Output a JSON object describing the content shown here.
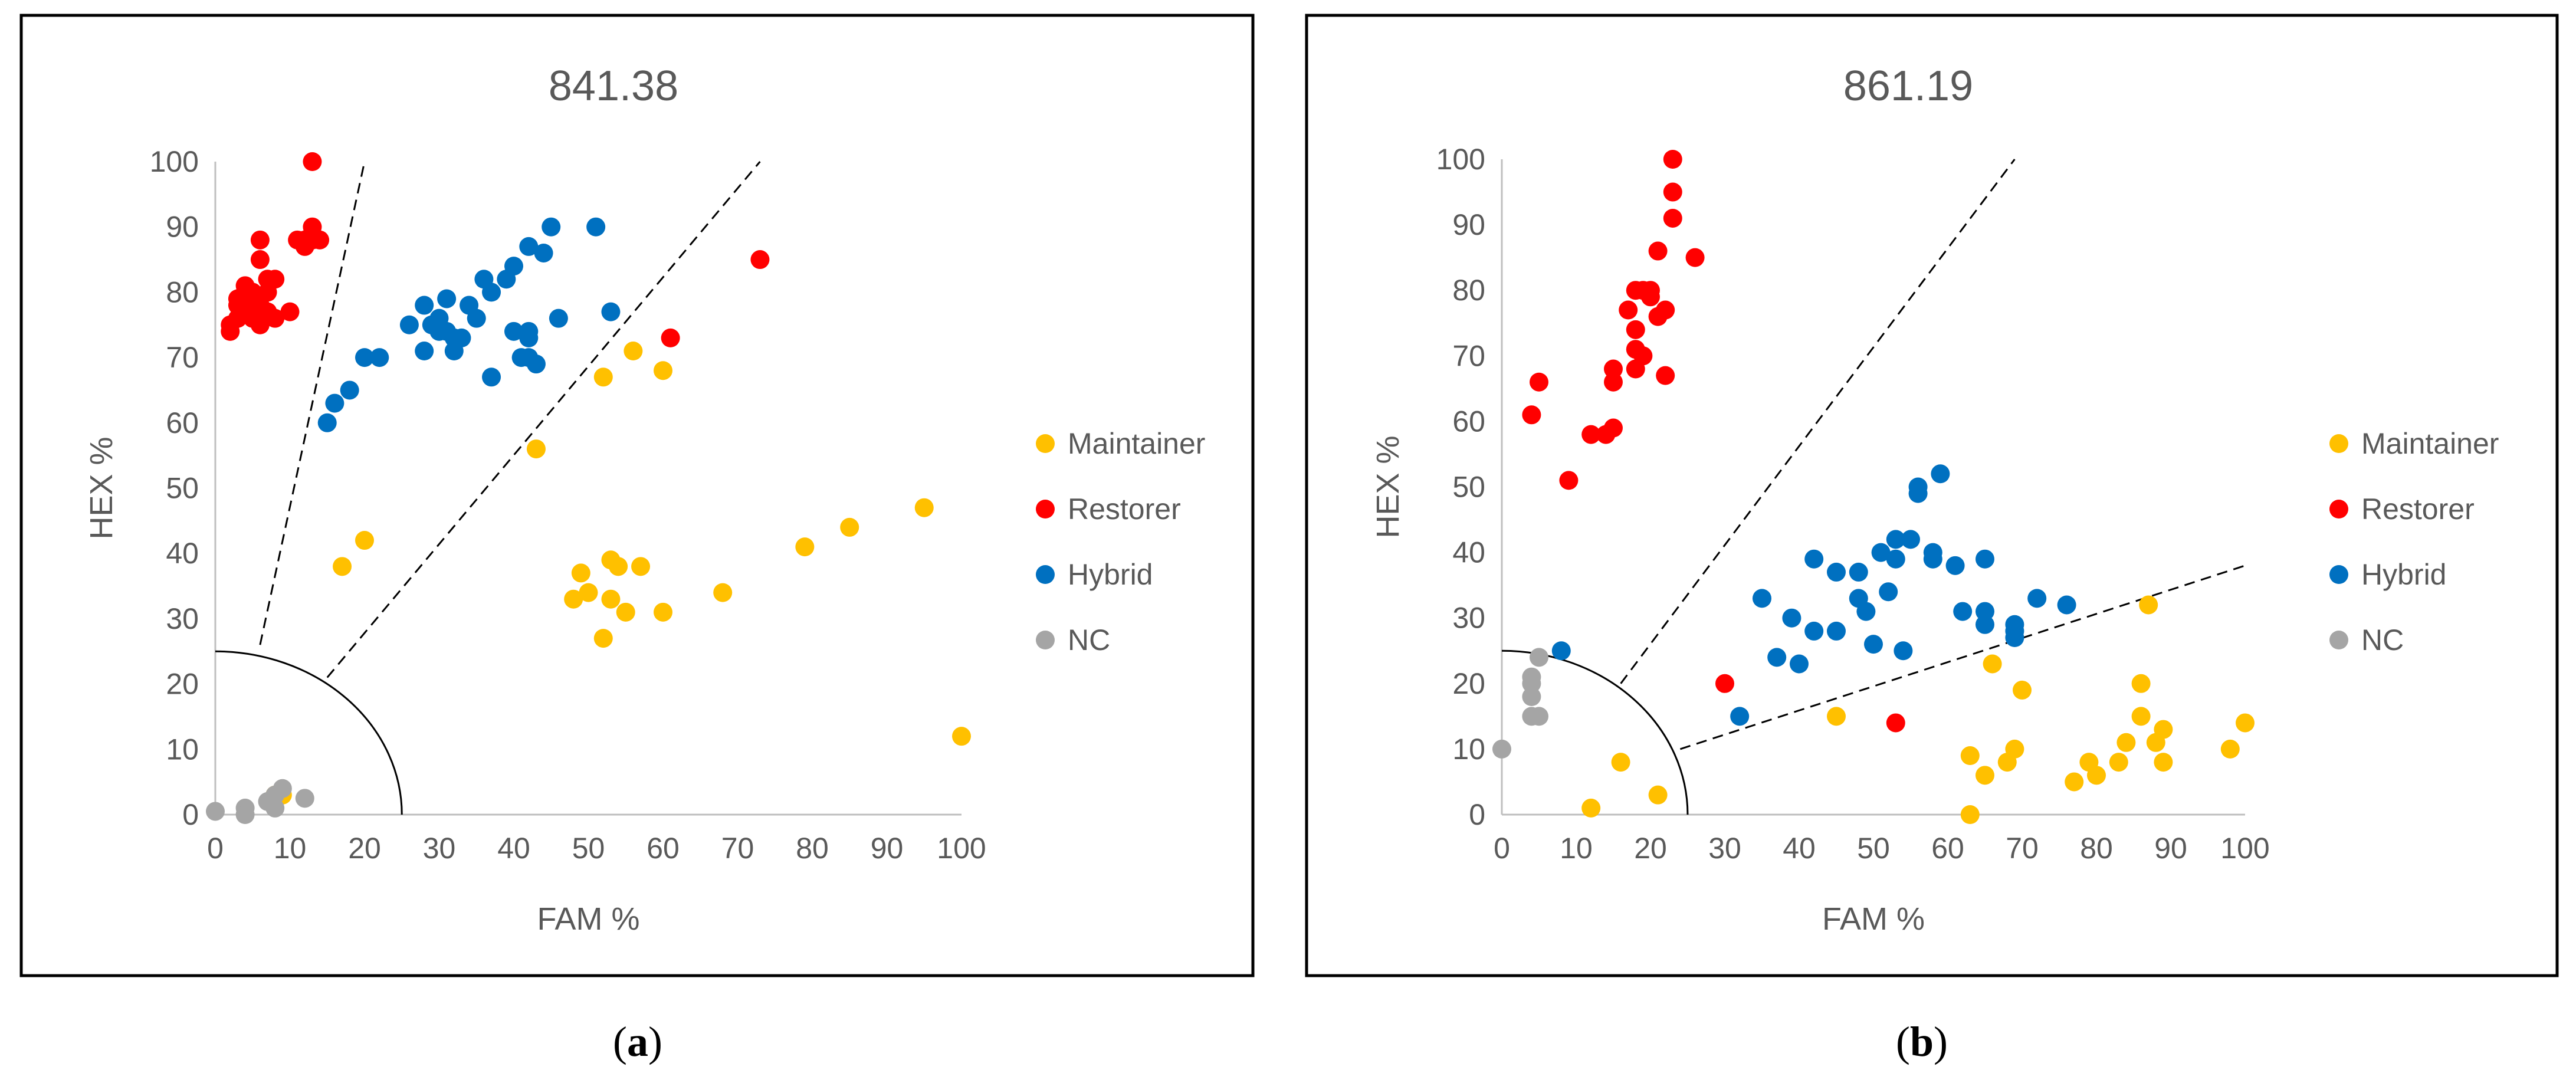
{
  "colors": {
    "maintainer": "#ffc000",
    "restorer": "#ff0000",
    "hybrid": "#0070c0",
    "nc": "#a5a5a5",
    "axis": "#bfbfbf",
    "text": "#595959",
    "frame": "#000000"
  },
  "chart_data": [
    {
      "type": "scatter",
      "panel_label": "a",
      "title": "841.38",
      "xlabel": "FAM %",
      "ylabel": "HEX %",
      "xlim": [
        0,
        100
      ],
      "ylim": [
        0,
        100
      ],
      "xticks": [
        0,
        10,
        20,
        30,
        40,
        50,
        60,
        70,
        80,
        90,
        100
      ],
      "yticks": [
        0,
        10,
        20,
        30,
        40,
        50,
        60,
        70,
        80,
        90,
        100
      ],
      "grid": false,
      "legend": "right",
      "reference_lines": [
        {
          "style": "dashed",
          "points": [
            [
              6,
              26
            ],
            [
              20,
              100
            ]
          ]
        },
        {
          "style": "dashed",
          "points": [
            [
              15,
              21
            ],
            [
              73,
              100
            ]
          ]
        }
      ],
      "reference_arc": {
        "radius": 25
      },
      "series": [
        {
          "name": "Maintainer",
          "color_key": "maintainer",
          "points": [
            [
              17,
              38
            ],
            [
              20,
              42
            ],
            [
              43,
              56
            ],
            [
              48,
              33
            ],
            [
              49,
              37
            ],
            [
              50,
              34
            ],
            [
              52,
              27
            ],
            [
              52,
              67
            ],
            [
              53,
              39
            ],
            [
              53,
              33
            ],
            [
              54,
              38
            ],
            [
              55,
              31
            ],
            [
              56,
              71
            ],
            [
              57,
              38
            ],
            [
              60,
              68
            ],
            [
              60,
              31
            ],
            [
              68,
              34
            ],
            [
              79,
              41
            ],
            [
              85,
              44
            ],
            [
              95,
              47
            ],
            [
              100,
              12
            ],
            [
              9,
              3
            ],
            [
              8,
              3
            ]
          ]
        },
        {
          "name": "Restorer",
          "color_key": "restorer",
          "points": [
            [
              2,
              74
            ],
            [
              2,
              75
            ],
            [
              3,
              78
            ],
            [
              3,
              79
            ],
            [
              3,
              76
            ],
            [
              4,
              80
            ],
            [
              4,
              81
            ],
            [
              4,
              77
            ],
            [
              5,
              78
            ],
            [
              5,
              76
            ],
            [
              5,
              79
            ],
            [
              5,
              80
            ],
            [
              6,
              85
            ],
            [
              6,
              78
            ],
            [
              6,
              75
            ],
            [
              6,
              88
            ],
            [
              7,
              82
            ],
            [
              7,
              80
            ],
            [
              7,
              77
            ],
            [
              8,
              76
            ],
            [
              8,
              82
            ],
            [
              10,
              77
            ],
            [
              11,
              88
            ],
            [
              12,
              87
            ],
            [
              12,
              88
            ],
            [
              13,
              90
            ],
            [
              13,
              89
            ],
            [
              13,
              88
            ],
            [
              14,
              88
            ],
            [
              13,
              100
            ],
            [
              61,
              73
            ],
            [
              73,
              85
            ]
          ]
        },
        {
          "name": "Hybrid",
          "color_key": "hybrid",
          "points": [
            [
              15,
              60
            ],
            [
              16,
              63
            ],
            [
              18,
              65
            ],
            [
              20,
              70
            ],
            [
              22,
              70
            ],
            [
              26,
              75
            ],
            [
              28,
              71
            ],
            [
              28,
              78
            ],
            [
              29,
              75
            ],
            [
              30,
              76
            ],
            [
              30,
              74
            ],
            [
              31,
              79
            ],
            [
              31,
              74
            ],
            [
              32,
              73
            ],
            [
              32,
              71
            ],
            [
              33,
              73
            ],
            [
              34,
              78
            ],
            [
              35,
              76
            ],
            [
              36,
              82
            ],
            [
              37,
              80
            ],
            [
              37,
              67
            ],
            [
              39,
              82
            ],
            [
              40,
              84
            ],
            [
              40,
              74
            ],
            [
              41,
              70
            ],
            [
              42,
              74
            ],
            [
              42,
              73
            ],
            [
              42,
              70
            ],
            [
              42,
              87
            ],
            [
              43,
              69
            ],
            [
              44,
              86
            ],
            [
              45,
              90
            ],
            [
              46,
              76
            ],
            [
              51,
              90
            ],
            [
              53,
              77
            ]
          ]
        },
        {
          "name": "NC",
          "color_key": "nc",
          "points": [
            [
              0,
              0.5
            ],
            [
              4,
              1
            ],
            [
              4,
              0
            ],
            [
              7,
              2
            ],
            [
              8,
              1
            ],
            [
              8,
              3
            ],
            [
              9,
              4
            ],
            [
              12,
              2.5
            ]
          ]
        }
      ]
    },
    {
      "type": "scatter",
      "panel_label": "b",
      "title": "861.19",
      "xlabel": "FAM %",
      "ylabel": "HEX %",
      "xlim": [
        0,
        100
      ],
      "ylim": [
        0,
        100
      ],
      "xticks": [
        0,
        10,
        20,
        30,
        40,
        50,
        60,
        70,
        80,
        90,
        100
      ],
      "yticks": [
        0,
        10,
        20,
        30,
        40,
        50,
        60,
        70,
        80,
        90,
        100
      ],
      "grid": false,
      "legend": "right",
      "reference_lines": [
        {
          "style": "dashed",
          "points": [
            [
              16,
              20
            ],
            [
              69,
              100
            ]
          ]
        },
        {
          "style": "dashed",
          "points": [
            [
              24,
              10
            ],
            [
              100,
              38
            ]
          ]
        }
      ],
      "reference_arc": {
        "radius": 25
      },
      "series": [
        {
          "name": "Maintainer",
          "color_key": "maintainer",
          "points": [
            [
              12,
              1
            ],
            [
              16,
              8
            ],
            [
              21,
              3
            ],
            [
              45,
              15
            ],
            [
              63,
              9
            ],
            [
              63,
              0
            ],
            [
              65,
              6
            ],
            [
              66,
              23
            ],
            [
              68,
              8
            ],
            [
              69,
              10
            ],
            [
              70,
              19
            ],
            [
              77,
              5
            ],
            [
              79,
              8
            ],
            [
              80,
              6
            ],
            [
              83,
              8
            ],
            [
              84,
              11
            ],
            [
              86,
              15
            ],
            [
              86,
              20
            ],
            [
              87,
              32
            ],
            [
              88,
              11
            ],
            [
              89,
              13
            ],
            [
              89,
              8
            ],
            [
              98,
              10
            ],
            [
              100,
              14
            ]
          ]
        },
        {
          "name": "Restorer",
          "color_key": "restorer",
          "points": [
            [
              4,
              61
            ],
            [
              5,
              66
            ],
            [
              9,
              51
            ],
            [
              12,
              58
            ],
            [
              14,
              58
            ],
            [
              15,
              59
            ],
            [
              15,
              66
            ],
            [
              15,
              68
            ],
            [
              17,
              77
            ],
            [
              18,
              80
            ],
            [
              18,
              74
            ],
            [
              18,
              71
            ],
            [
              18,
              68
            ],
            [
              19,
              80
            ],
            [
              19,
              70
            ],
            [
              20,
              80
            ],
            [
              20,
              79
            ],
            [
              21,
              76
            ],
            [
              21,
              86
            ],
            [
              22,
              77
            ],
            [
              22,
              67
            ],
            [
              23,
              100
            ],
            [
              23,
              95
            ],
            [
              23,
              91
            ],
            [
              26,
              85
            ],
            [
              30,
              20
            ],
            [
              53,
              14
            ]
          ]
        },
        {
          "name": "Hybrid",
          "color_key": "hybrid",
          "points": [
            [
              8,
              25
            ],
            [
              32,
              15
            ],
            [
              35,
              33
            ],
            [
              37,
              24
            ],
            [
              39,
              30
            ],
            [
              40,
              23
            ],
            [
              42,
              39
            ],
            [
              42,
              28
            ],
            [
              45,
              37
            ],
            [
              45,
              28
            ],
            [
              48,
              33
            ],
            [
              48,
              37
            ],
            [
              49,
              31
            ],
            [
              50,
              26
            ],
            [
              51,
              40
            ],
            [
              52,
              34
            ],
            [
              53,
              42
            ],
            [
              53,
              39
            ],
            [
              54,
              25
            ],
            [
              55,
              42
            ],
            [
              56,
              50
            ],
            [
              56,
              49
            ],
            [
              58,
              40
            ],
            [
              58,
              39
            ],
            [
              59,
              52
            ],
            [
              61,
              38
            ],
            [
              62,
              31
            ],
            [
              65,
              39
            ],
            [
              65,
              31
            ],
            [
              65,
              29
            ],
            [
              69,
              29
            ],
            [
              69,
              28
            ],
            [
              69,
              27
            ],
            [
              72,
              33
            ],
            [
              76,
              32
            ]
          ]
        },
        {
          "name": "NC",
          "color_key": "nc",
          "points": [
            [
              0,
              10
            ],
            [
              4,
              21
            ],
            [
              4,
              20
            ],
            [
              4,
              18
            ],
            [
              4,
              15
            ],
            [
              5,
              24
            ],
            [
              5,
              15
            ]
          ]
        }
      ]
    }
  ]
}
